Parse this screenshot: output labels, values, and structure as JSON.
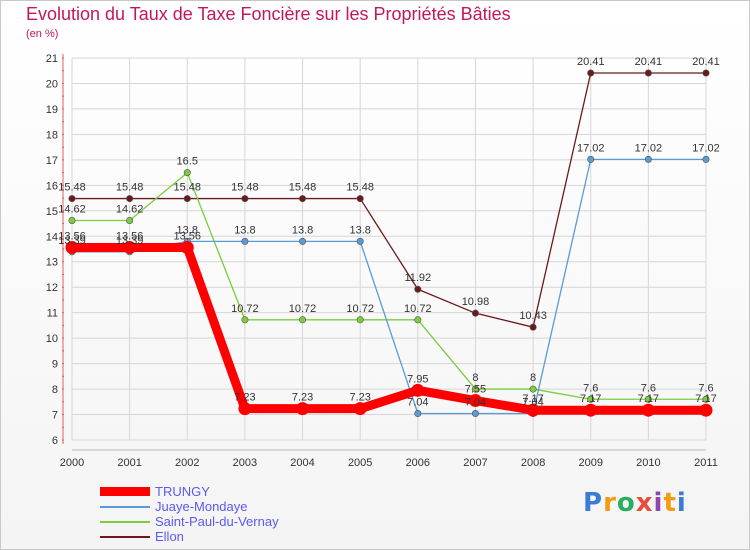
{
  "title": "Evolution du Taux de Taxe Foncière sur les Propriétés Bâties",
  "unit": "(en %)",
  "logo": {
    "text": "Proxiti",
    "letters": [
      {
        "ch": "P",
        "color": "#3a7bd5"
      },
      {
        "ch": "r",
        "color": "#f39c12"
      },
      {
        "ch": "o",
        "color": "#27ae60"
      },
      {
        "ch": "x",
        "color": "#e74c3c"
      },
      {
        "ch": "i",
        "color": "#8e44ad"
      },
      {
        "ch": "t",
        "color": "#f39c12"
      },
      {
        "ch": "i",
        "color": "#3a7bd5"
      }
    ]
  },
  "chart_data": {
    "type": "line",
    "title": "Evolution du Taux de Taxe Foncière sur les Propriétés Bâties",
    "ylabel": "(en %)",
    "xlabel": "",
    "categories": [
      "2000",
      "2001",
      "2002",
      "2003",
      "2004",
      "2005",
      "2006",
      "2007",
      "2008",
      "2009",
      "2010",
      "2011"
    ],
    "ylim": [
      6,
      21
    ],
    "yticks": [
      "6",
      "7",
      "8",
      "9",
      "10",
      "11",
      "12",
      "13",
      "14",
      "15",
      "16",
      "17",
      "18",
      "19",
      "20",
      "21"
    ],
    "grid": true,
    "legend_position": "bottom-left",
    "series": [
      {
        "name": "Ellon",
        "color": "#6b1a1a",
        "values": [
          15.48,
          15.48,
          15.48,
          15.48,
          15.48,
          15.48,
          11.92,
          10.98,
          10.43,
          20.41,
          20.41,
          20.41
        ],
        "labels": [
          "15.48",
          "15.48",
          "15.48",
          "15.48",
          "15.48",
          "15.48",
          "11.92",
          "10.98",
          "10.43",
          "20.41",
          "20.41",
          "20.41"
        ]
      },
      {
        "name": "Saint-Paul-du-Vernay",
        "color": "#7ccc3c",
        "values": [
          14.62,
          14.62,
          16.5,
          10.72,
          10.72,
          10.72,
          10.72,
          8,
          8,
          7.6,
          7.6,
          7.6
        ],
        "labels": [
          "14.62",
          "14.62",
          "16.5",
          "10.72",
          "10.72",
          "10.72",
          "10.72",
          "8",
          "8",
          "7.6",
          "7.6",
          "7.6"
        ]
      },
      {
        "name": "Juaye-Mondaye",
        "color": "#5a9bd5",
        "values": [
          13.39,
          13.39,
          13.8,
          13.8,
          13.8,
          13.8,
          7.04,
          7.04,
          7.04,
          17.02,
          17.02,
          17.02
        ],
        "labels": [
          "13.39",
          "13.39",
          "13.8",
          "13.8",
          "13.8",
          "13.8",
          "7.04",
          "7.04",
          "7.04",
          "17.02",
          "17.02",
          "17.02"
        ]
      },
      {
        "name": "TRUNGY",
        "color": "#ff0000",
        "values": [
          13.56,
          13.56,
          13.56,
          7.23,
          7.23,
          7.23,
          7.95,
          7.55,
          7.17,
          7.17,
          7.17,
          7.17
        ],
        "labels": [
          "13.56",
          "13.56",
          "13.56",
          "7.23",
          "7.23",
          "7.23",
          "7.95",
          "7.55",
          "7.17",
          "7.17",
          "7.17",
          "7.17"
        ]
      }
    ],
    "legend": [
      "TRUNGY",
      "Juaye-Mondaye",
      "Saint-Paul-du-Vernay",
      "Ellon"
    ]
  }
}
